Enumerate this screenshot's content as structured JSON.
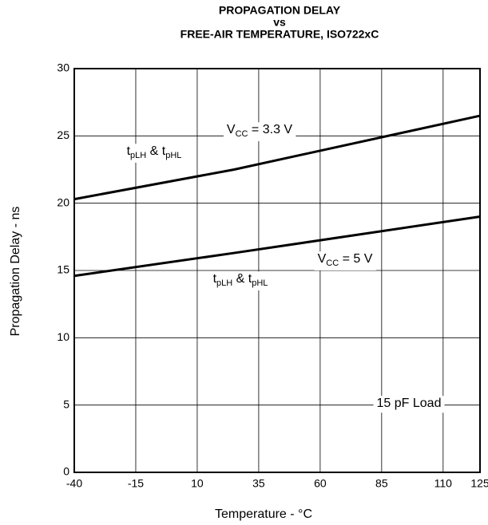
{
  "chart_data": {
    "type": "line",
    "title": [
      "PROPAGATION DELAY",
      "vs",
      "FREE-AIR TEMPERATURE, ISO722xC"
    ],
    "xlabel": "Temperature - °C",
    "ylabel": "Propagation Delay - ns",
    "x": [
      -40,
      25,
      125
    ],
    "series": [
      {
        "name": "VCC = 3.3 V",
        "color": "#000000",
        "values": [
          20.3,
          22.5,
          26.5
        ]
      },
      {
        "name": "VCC = 5 V",
        "color": "#000000",
        "values": [
          14.6,
          16.3,
          19.0
        ]
      }
    ],
    "annotations": [
      {
        "segments": [
          "V",
          "CC",
          " = 3.3 V"
        ]
      },
      {
        "segments": [
          "t",
          "pLH",
          " & t",
          "pHL"
        ]
      },
      {
        "segments": [
          "V",
          "CC",
          " = 5 V"
        ]
      },
      {
        "segments": [
          "t",
          "pLH",
          " & t",
          "pHL"
        ]
      },
      {
        "segments": [
          "15 pF Load"
        ]
      }
    ],
    "xlim": [
      -40,
      125
    ],
    "xticks": [
      -40,
      -15,
      10,
      35,
      60,
      85,
      110,
      125
    ],
    "ylim": [
      0,
      30
    ],
    "yticks": [
      0,
      5,
      10,
      15,
      20,
      25,
      30
    ],
    "grid": true
  }
}
